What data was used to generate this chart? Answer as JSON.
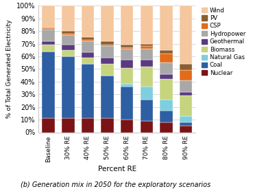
{
  "categories": [
    "Baseline",
    "30% RE",
    "40% RE",
    "50% RE",
    "60% RE",
    "70% RE",
    "80% RE",
    "90% RE"
  ],
  "series": {
    "Nuclear": [
      11,
      11,
      11,
      11,
      10,
      9,
      8,
      5
    ],
    "Coal": [
      53,
      49,
      43,
      34,
      26,
      17,
      9,
      3
    ],
    "Natural Gas": [
      0,
      0,
      0,
      0,
      2,
      10,
      9,
      5
    ],
    "Biomass": [
      5,
      5,
      5,
      9,
      13,
      16,
      16,
      16
    ],
    "Geothermal": [
      3,
      4,
      4,
      5,
      6,
      5,
      4,
      3
    ],
    "Hydropower": [
      9,
      8,
      9,
      9,
      9,
      9,
      9,
      9
    ],
    "CSP": [
      1,
      1,
      1,
      1,
      1,
      2,
      7,
      8
    ],
    "PV": [
      1,
      2,
      2,
      3,
      2,
      2,
      3,
      5
    ],
    "Wind": [
      17,
      20,
      25,
      28,
      31,
      30,
      35,
      46
    ]
  },
  "colors": {
    "Nuclear": "#7b1416",
    "Coal": "#2e5fa3",
    "Natural Gas": "#7ecfdd",
    "Biomass": "#c6d47e",
    "Geothermal": "#5a3b82",
    "Hydropower": "#a8a8a8",
    "CSP": "#e36b1a",
    "PV": "#8b5e2f",
    "Wind": "#f5c79e"
  },
  "ylabel": "% of Total Generated Electricity",
  "xlabel": "Percent RE",
  "subtitle": "(b) Generation mix in 2050 for the exploratory scenarios",
  "ylim": [
    0,
    100
  ],
  "ytick_labels": [
    "0%",
    "10%",
    "20%",
    "30%",
    "40%",
    "50%",
    "60%",
    "70%",
    "80%",
    "90%",
    "100%"
  ],
  "legend_order": [
    "Wind",
    "PV",
    "CSP",
    "Hydropower",
    "Geothermal",
    "Biomass",
    "Natural Gas",
    "Coal",
    "Nuclear"
  ],
  "bg_color": "#ffffff",
  "grid_color": "#d0d0d0"
}
